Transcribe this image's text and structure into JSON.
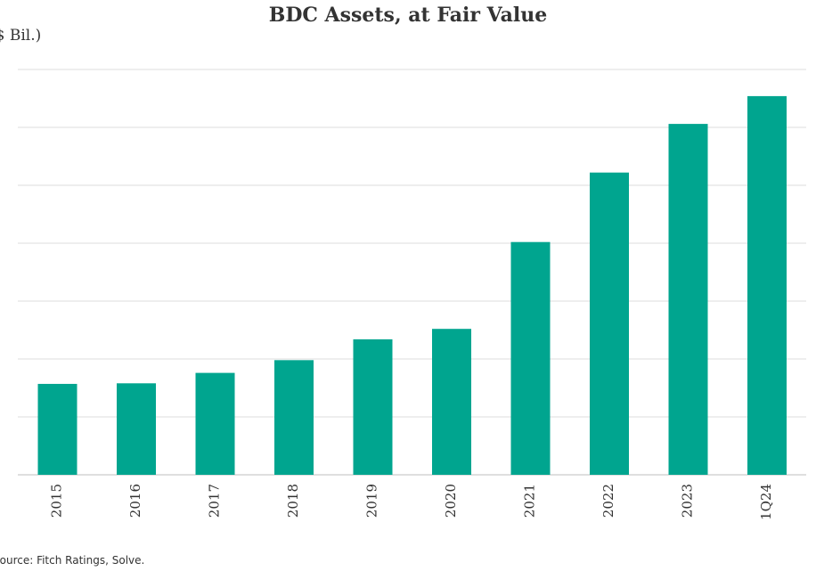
{
  "chart_data": {
    "type": "bar",
    "title": "BDC Assets, at Fair Value",
    "ylabel": "($ Bil.)",
    "xlabel": "",
    "categories": [
      "2015",
      "2016",
      "2017",
      "2018",
      "2019",
      "2020",
      "2021",
      "2022",
      "2023",
      "1Q24"
    ],
    "values": [
      78.5,
      79,
      88,
      99,
      117,
      126,
      201,
      261,
      303,
      327
    ],
    "ylim": [
      0,
      350
    ],
    "yticks": [
      0,
      50,
      100,
      150,
      200,
      250,
      300,
      350
    ],
    "grid": true,
    "bar_color": "#00A58F",
    "source": "Source: Fitch Ratings, Solve."
  }
}
